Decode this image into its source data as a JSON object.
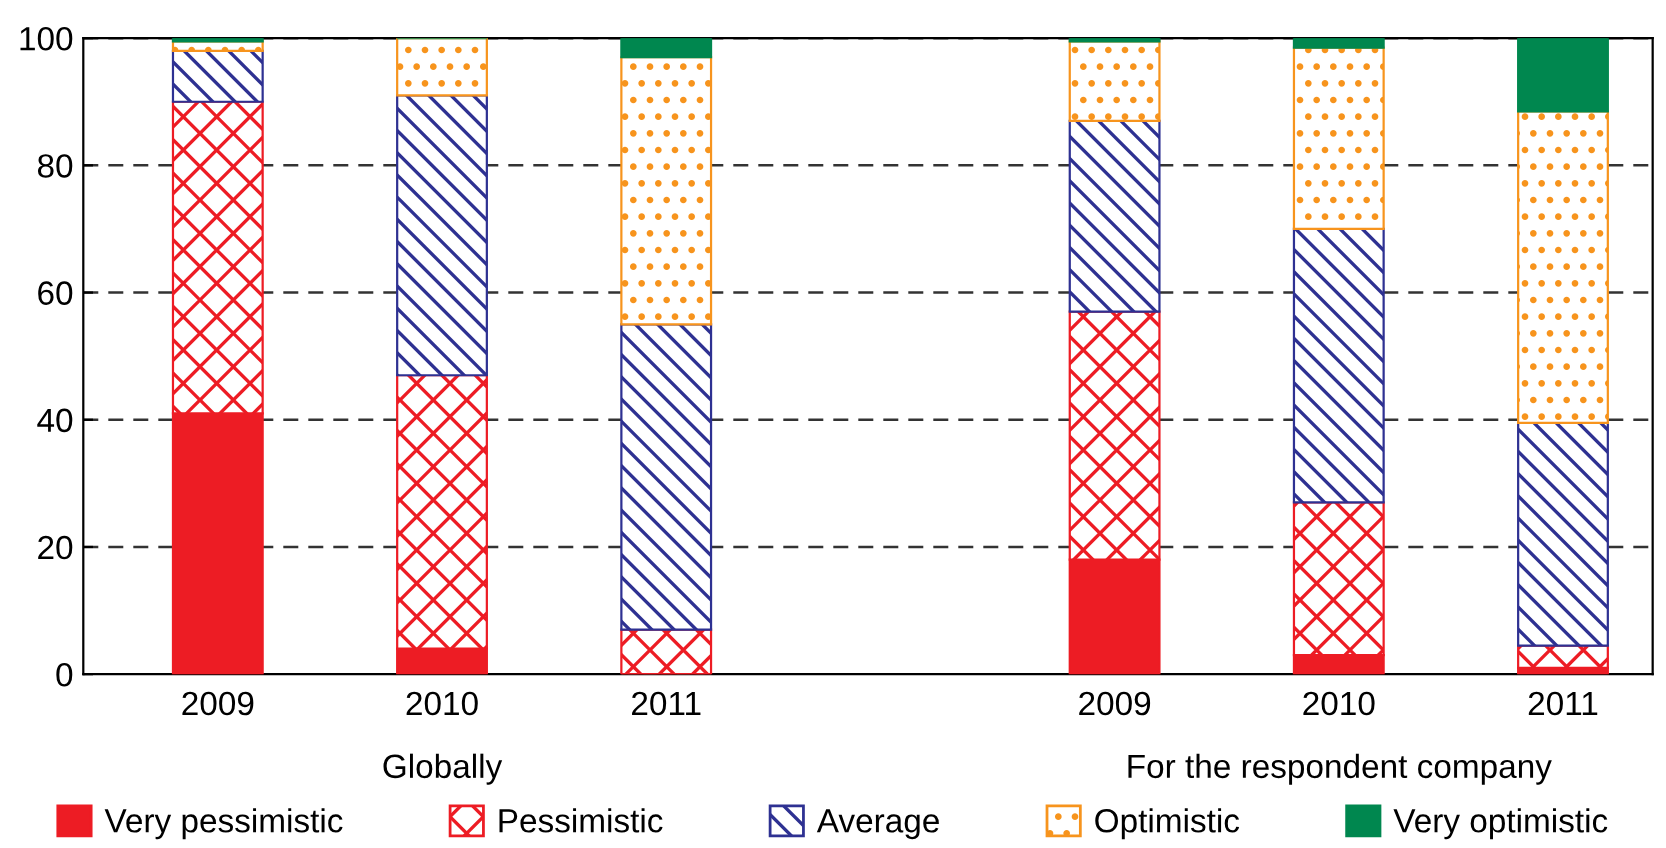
{
  "chart_data": {
    "type": "bar",
    "stacked": true,
    "categories": [
      "2009",
      "2010",
      "2011",
      null,
      "2009",
      "2010",
      "2011"
    ],
    "series": [
      {
        "name": "Very pessimistic",
        "color": "#ed1c24",
        "values": [
          41,
          4,
          0,
          null,
          18,
          3,
          1
        ]
      },
      {
        "name": "Pessimistic",
        "color": "#ed1c24",
        "values": [
          49,
          43,
          7,
          null,
          39,
          24,
          3.5
        ]
      },
      {
        "name": "Average",
        "color": "#2e3192",
        "values": [
          8,
          44,
          48,
          null,
          30,
          43,
          35
        ]
      },
      {
        "name": "Optimistic",
        "color": "#f7941d",
        "values": [
          1.5,
          9,
          42,
          null,
          12.5,
          28.5,
          49
        ]
      },
      {
        "name": "Very optimistic",
        "color": "#00874f",
        "values": [
          0.5,
          0,
          3,
          null,
          0.5,
          1.5,
          11.5
        ]
      }
    ],
    "ylim": [
      0,
      100
    ],
    "yticks": [
      0,
      20,
      40,
      60,
      80,
      100
    ],
    "grid": "y",
    "legend": "bottom",
    "annotations": [
      "Globally",
      "For the respondent company"
    ]
  }
}
